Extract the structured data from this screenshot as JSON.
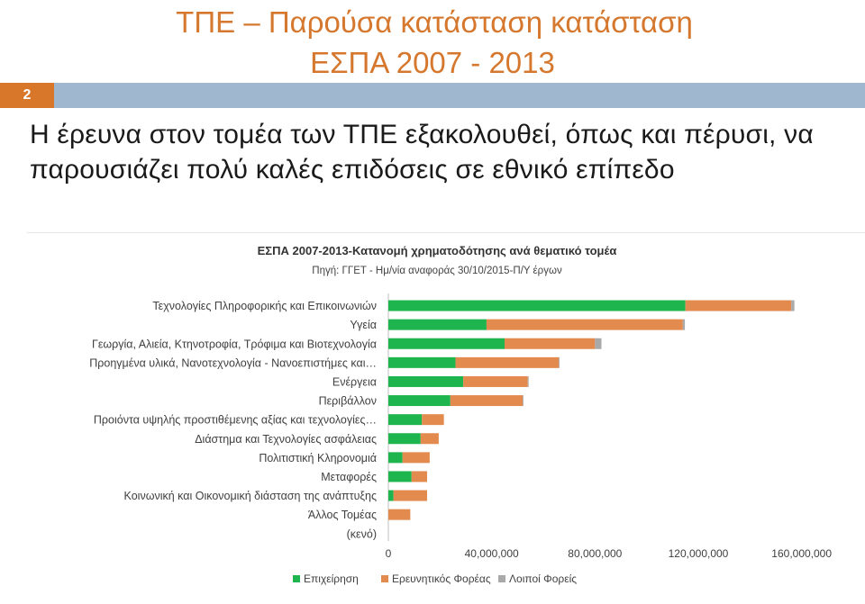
{
  "slide": {
    "title_line1": "ΤΠΕ – Παρούσα κατάσταση κατάσταση",
    "title_line2": "ΕΣΠΑ 2007 - 2013",
    "number": "2",
    "lead_text": "Η έρευνα στον τομέα των ΤΠΕ εξακολουθεί, όπως και πέρυσι, να παρουσιάζει πολύ καλές επιδόσεις σε εθνικό επίπεδο"
  },
  "colors": {
    "title": "#d5772d",
    "band": "#9fb8d0",
    "slide_number_bg": "#d8772a",
    "series_business": "#1eb44e",
    "series_research": "#e38a4e",
    "series_other": "#a9a9a9"
  },
  "chart_data": {
    "type": "bar",
    "orientation": "horizontal",
    "stacked": true,
    "title": "ΕΣΠΑ 2007-2013-Κατανομή χρηματοδότησης ανά θεματικό τομέα",
    "subtitle": "Πηγή: ΓΓΕΤ - Ημ/νία αναφοράς 30/10/2015-Π/Υ έργων",
    "xlabel": "",
    "ylabel": "",
    "categories": [
      "Τεχνολογίες Πληροφορικής και Επικοινωνιών",
      "Υγεία",
      "Γεωργία, Αλιεία, Κτηνοτροφία, Τρόφιμα και Βιοτεχνολογία",
      "Προηγμένα υλικά, Νανοτεχνολογία - Νανοεπιστήμες και…",
      "Ενέργεια",
      "Περιβάλλον",
      "Προιόντα υψηλής προστιθέμενης αξίας και τεχνολογίες…",
      "Διάστημα και Τεχνολογίες ασφάλειας",
      "Πολιτιστική Κληρονομιά",
      "Μεταφορές",
      "Κοινωνική και Οικονομική διάσταση της ανάπτυξης",
      "Άλλος Τομέας",
      "(κενό)"
    ],
    "series": [
      {
        "name": "Επιχείρηση",
        "values": [
          115000000,
          38000000,
          45000000,
          26000000,
          29000000,
          24000000,
          13000000,
          12500000,
          5500000,
          9000000,
          2000000,
          0,
          0
        ]
      },
      {
        "name": "Ερευνητικός Φορέας",
        "values": [
          41000000,
          76000000,
          35000000,
          40000000,
          25000000,
          28000000,
          8500000,
          7000000,
          10500000,
          6000000,
          13000000,
          8500000,
          0
        ]
      },
      {
        "name": "Λοιποί Φορείς",
        "values": [
          1200000,
          800000,
          2500000,
          300000,
          300000,
          300000,
          0,
          0,
          0,
          0,
          0,
          0,
          0
        ]
      }
    ],
    "xlim": [
      0,
      180000000
    ],
    "x_ticks": [
      0,
      40000000,
      80000000,
      120000000,
      160000000
    ],
    "x_tick_labels": [
      "0",
      "40,000,000",
      "80,000,000",
      "120,000,000",
      "160,000,000"
    ],
    "grid": false,
    "legend_position": "bottom"
  }
}
